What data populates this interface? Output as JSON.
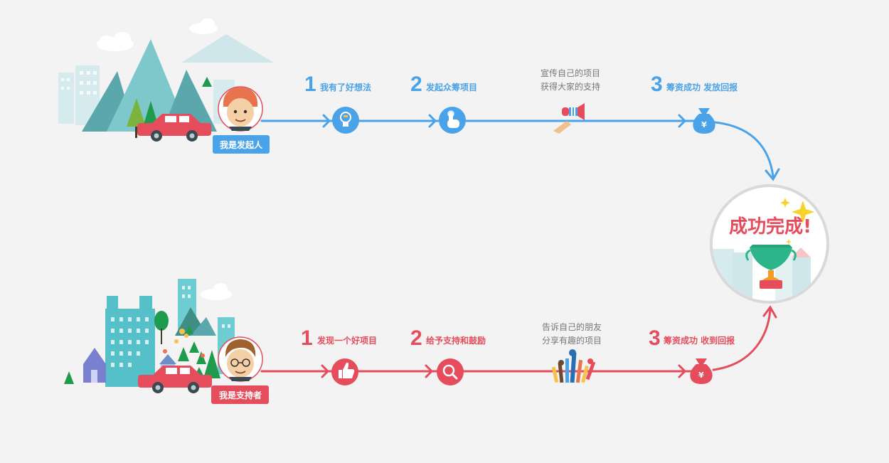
{
  "colors": {
    "background": "#f3f3f3",
    "initiator_track": "#4aa3e8",
    "supporter_track": "#e54d5c"
  },
  "initiator": {
    "role_badge": "我是发起人",
    "steps": [
      {
        "number": "1",
        "label": "我有了好想法",
        "icon": "lightbulb-icon"
      },
      {
        "number": "2",
        "label": "发起众筹项目",
        "icon": "hand-pointer-icon"
      },
      {
        "number": "",
        "note_line1": "宣传自己的项目",
        "note_line2": "获得大家的支持",
        "icon": "megaphone-icon"
      },
      {
        "number": "3",
        "label": "筹资成功   发放回报",
        "icon": "money-bag-icon"
      }
    ]
  },
  "supporter": {
    "role_badge": "我是支持者",
    "steps": [
      {
        "number": "1",
        "label": "发现一个好项目",
        "icon": "thumbs-up-icon"
      },
      {
        "number": "2",
        "label": "给予支持和鼓励",
        "icon": "magnifier-icon"
      },
      {
        "number": "",
        "note_line1": "告诉自己的朋友",
        "note_line2": "分享有趣的项目",
        "icon": "raised-hands-icon"
      },
      {
        "number": "3",
        "label": "筹资成功    收到回报",
        "icon": "money-bag-icon"
      }
    ]
  },
  "finish": {
    "title": "成功完成!",
    "icon": "trophy-icon"
  },
  "money_symbol": "¥"
}
